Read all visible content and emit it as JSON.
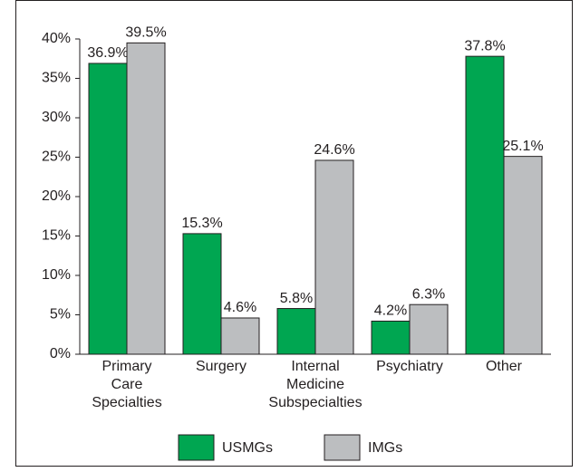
{
  "chart_data": {
    "type": "bar",
    "categories": [
      [
        "Primary",
        "Care",
        "Specialties"
      ],
      [
        "Surgery"
      ],
      [
        "Internal",
        "Medicine",
        "Subspecialties"
      ],
      [
        "Psychiatry"
      ],
      [
        "Other"
      ]
    ],
    "series": [
      {
        "name": "USMGs",
        "color": "#00a651",
        "values": [
          36.9,
          15.3,
          5.8,
          4.2,
          37.8
        ],
        "value_labels": [
          "36.9%",
          "15.3%",
          "5.8%",
          "4.2%",
          "37.8%"
        ]
      },
      {
        "name": "IMGs",
        "color": "#bcbec0",
        "values": [
          39.5,
          4.6,
          24.6,
          6.3,
          25.1
        ],
        "value_labels": [
          "39.5%",
          "4.6%",
          "24.6%",
          "6.3%",
          "25.1%"
        ]
      }
    ],
    "ylim": [
      0,
      40
    ],
    "yticks": [
      {
        "value": 0,
        "label": "0%"
      },
      {
        "value": 5,
        "label": "5%"
      },
      {
        "value": 10,
        "label": "10%"
      },
      {
        "value": 15,
        "label": "15%"
      },
      {
        "value": 20,
        "label": "20%"
      },
      {
        "value": 25,
        "label": "25%"
      },
      {
        "value": 30,
        "label": "30%"
      },
      {
        "value": 35,
        "label": "35%"
      },
      {
        "value": 40,
        "label": "40%"
      }
    ],
    "grid": false
  }
}
